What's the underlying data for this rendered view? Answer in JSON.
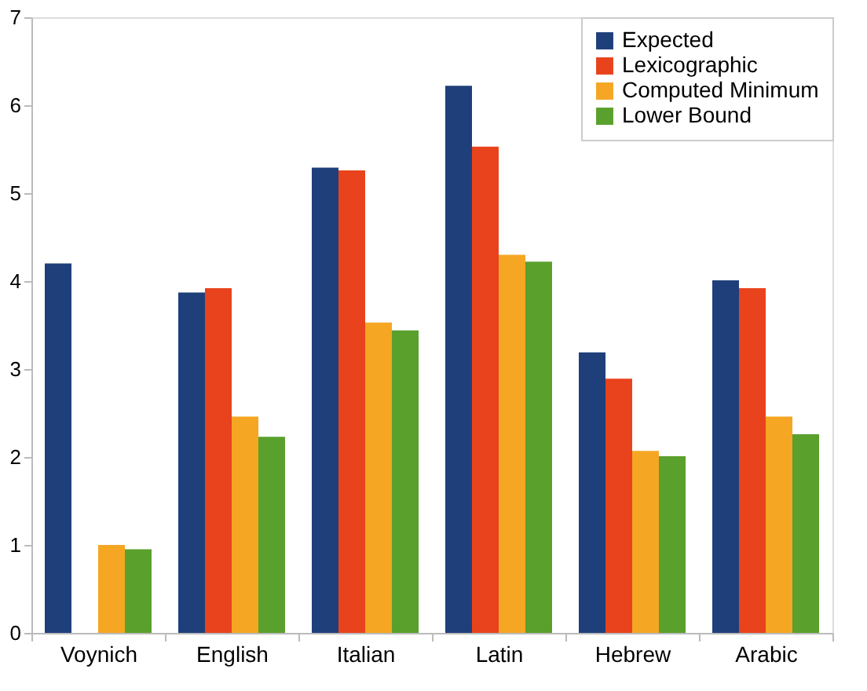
{
  "chart_data": {
    "type": "bar",
    "categories": [
      "Voynich",
      "English",
      "Italian",
      "Latin",
      "Hebrew",
      "Arabic"
    ],
    "series": [
      {
        "name": "Expected",
        "color": "#1f3f7a",
        "values": [
          4.2,
          3.87,
          5.29,
          6.22,
          3.19,
          4.01
        ]
      },
      {
        "name": "Lexicographic",
        "color": "#e8431c",
        "values": [
          null,
          3.92,
          5.26,
          5.53,
          2.89,
          3.92
        ]
      },
      {
        "name": "Computed Minimum",
        "color": "#f5a623",
        "values": [
          1.0,
          2.46,
          3.53,
          4.3,
          2.07,
          2.46
        ]
      },
      {
        "name": "Lower Bound",
        "color": "#5aa02c",
        "values": [
          0.95,
          2.23,
          3.44,
          4.22,
          2.01,
          2.26
        ]
      }
    ],
    "ylim": [
      0,
      7
    ],
    "yticks": [
      0,
      1,
      2,
      3,
      4,
      5,
      6,
      7
    ],
    "grid": false,
    "legend": "top right"
  }
}
